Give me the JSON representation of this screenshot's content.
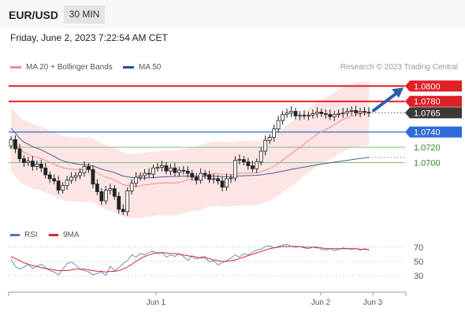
{
  "header": {
    "symbol": "EUR/USD",
    "timeframe": "30 MIN",
    "datetime": "Friday, June 2, 2023 7:22:54 AM CET"
  },
  "legend": {
    "ma20": {
      "label": "MA 20 + Bollinger Bands",
      "color": "#f08c8c"
    },
    "ma50": {
      "label": "MA 50",
      "color": "#2a4f8f"
    },
    "credit": "Research © 2023 Trading Central"
  },
  "rsi_legend": {
    "rsi": {
      "label": "RSI",
      "color": "#4a72c4"
    },
    "ma9": {
      "label": "9MA",
      "color": "#d9262c"
    }
  },
  "levels": [
    {
      "value": 1.08,
      "label": "1.0800",
      "color": "#e01f26",
      "style": "resistance"
    },
    {
      "value": 1.078,
      "label": "1.0780",
      "color": "#e01f26",
      "style": "resistance"
    },
    {
      "value": 1.0765,
      "label": "1.0765",
      "color": "#3a3a3a",
      "style": "current"
    },
    {
      "value": 1.074,
      "label": "1.0740",
      "color": "#2f6ad9",
      "style": "pivot"
    },
    {
      "value": 1.072,
      "label": "1.0720",
      "color": "#2e8b2e",
      "style": "support"
    },
    {
      "value": 1.07,
      "label": "1.0700",
      "color": "#2e8b2e",
      "style": "support"
    }
  ],
  "chart_data": {
    "type": "candlestick",
    "title": "EUR/USD 30 MIN",
    "x_tick_labels": [
      "Jun 1",
      "Jun 2",
      "Jun 3"
    ],
    "price_range": [
      1.061,
      1.0826
    ],
    "closes": [
      1.073,
      1.0718,
      1.0705,
      1.07,
      1.0702,
      1.0695,
      1.0698,
      1.0693,
      1.0684,
      1.0679,
      1.0676,
      1.0664,
      1.067,
      1.0677,
      1.0681,
      1.0683,
      1.0687,
      1.0695,
      1.0691,
      1.0672,
      1.0662,
      1.065,
      1.0664,
      1.0666,
      1.0656,
      1.0639,
      1.0636,
      1.0663,
      1.0673,
      1.0681,
      1.0683,
      1.0686,
      1.0685,
      1.0693,
      1.0694,
      1.0696,
      1.0689,
      1.0693,
      1.0687,
      1.069,
      1.0689,
      1.0686,
      1.0681,
      1.0677,
      1.0686,
      1.0684,
      1.0678,
      1.0679,
      1.0676,
      1.0668,
      1.0679,
      1.068,
      1.0703,
      1.0704,
      1.0701,
      1.0696,
      1.0692,
      1.0701,
      1.0715,
      1.0729,
      1.0733,
      1.0744,
      1.0755,
      1.0763,
      1.0765,
      1.0767,
      1.0761,
      1.0762,
      1.0761,
      1.0762,
      1.0764,
      1.0766,
      1.0764,
      1.0763,
      1.076,
      1.0763,
      1.0764,
      1.0765,
      1.0767,
      1.0768,
      1.0765,
      1.0767,
      1.0766,
      1.0765
    ],
    "ma20_end": 1.0762,
    "ma50_end": 1.0733,
    "bollinger_band_shaded": true,
    "forecast_arrow": {
      "from": 1.0765,
      "to": 1.08
    },
    "rsi": {
      "levels": [
        70,
        50,
        30
      ],
      "series": [
        {
          "name": "RSI",
          "values": [
            52,
            42,
            38,
            41,
            45,
            39,
            42,
            45,
            40,
            36,
            34,
            30,
            38,
            46,
            48,
            44,
            38,
            36,
            34,
            30,
            32,
            34,
            29,
            42,
            36,
            40,
            46,
            50,
            58,
            55,
            60,
            58,
            62,
            63,
            60,
            62,
            55,
            58,
            56,
            60,
            56,
            50,
            57,
            52,
            55,
            56,
            48,
            50,
            44,
            47,
            50,
            54,
            58,
            55,
            60,
            58,
            62,
            65,
            66,
            70,
            71,
            68,
            70,
            72,
            73,
            70,
            69,
            70,
            68,
            67,
            69,
            70,
            66,
            65,
            67,
            64,
            66,
            68,
            67,
            66,
            67,
            65,
            67,
            65
          ]
        },
        {
          "name": "9MA",
          "values": [
            56,
            53,
            50,
            47,
            45,
            43,
            42,
            40,
            39,
            38,
            37,
            36,
            36,
            36,
            37,
            38,
            38,
            38,
            37,
            36,
            35,
            35,
            34,
            35,
            35,
            36,
            38,
            41,
            45,
            49,
            53,
            56,
            58,
            60,
            61,
            61,
            61,
            60,
            60,
            59,
            58,
            57,
            56,
            55,
            54,
            54,
            53,
            51,
            50,
            49,
            49,
            50,
            51,
            53,
            55,
            57,
            59,
            61,
            63,
            65,
            67,
            68,
            69,
            70,
            70,
            70,
            70,
            70,
            69,
            69,
            69,
            68,
            68,
            67,
            67,
            67,
            67,
            67,
            67,
            67,
            67,
            66,
            66,
            66
          ]
        }
      ]
    }
  }
}
